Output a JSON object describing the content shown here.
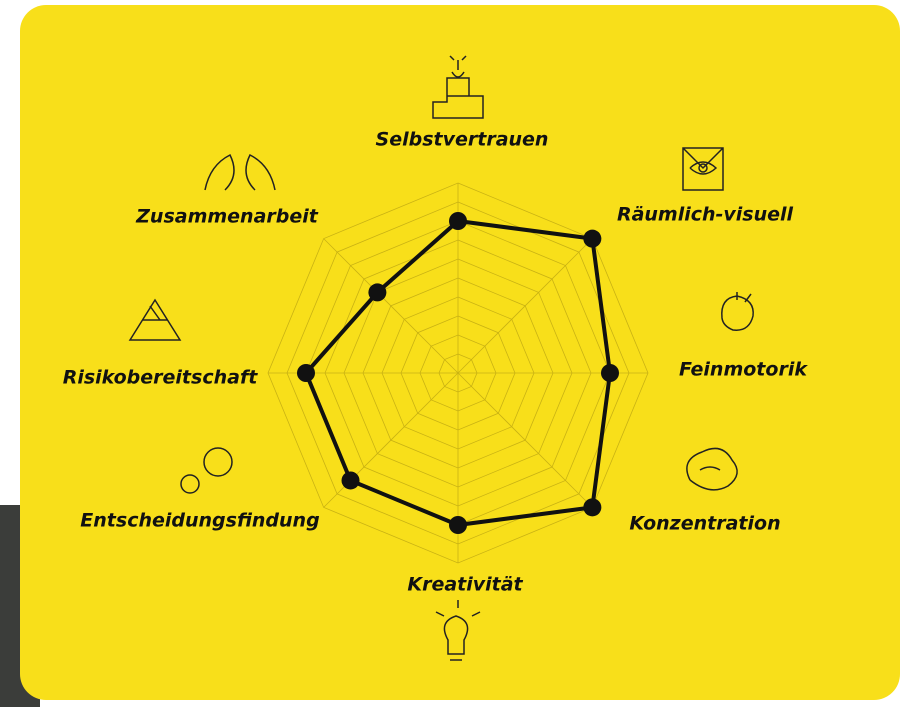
{
  "chart_data": {
    "type": "radar",
    "categories": [
      "Selbstvertrauen",
      "Räumlich-visuell",
      "Feinmotorik",
      "Konzentration",
      "Kreativität",
      "Entscheidungsfindung",
      "Risikobereitschaft",
      "Zusammenarbeit"
    ],
    "values": [
      8,
      10,
      8,
      10,
      8,
      8,
      8,
      6
    ],
    "color": "#111111",
    "rlim": [
      0,
      10
    ],
    "rticks": [
      1,
      2,
      3,
      4,
      5,
      6,
      7,
      8,
      9,
      10
    ],
    "grid": true
  }
}
